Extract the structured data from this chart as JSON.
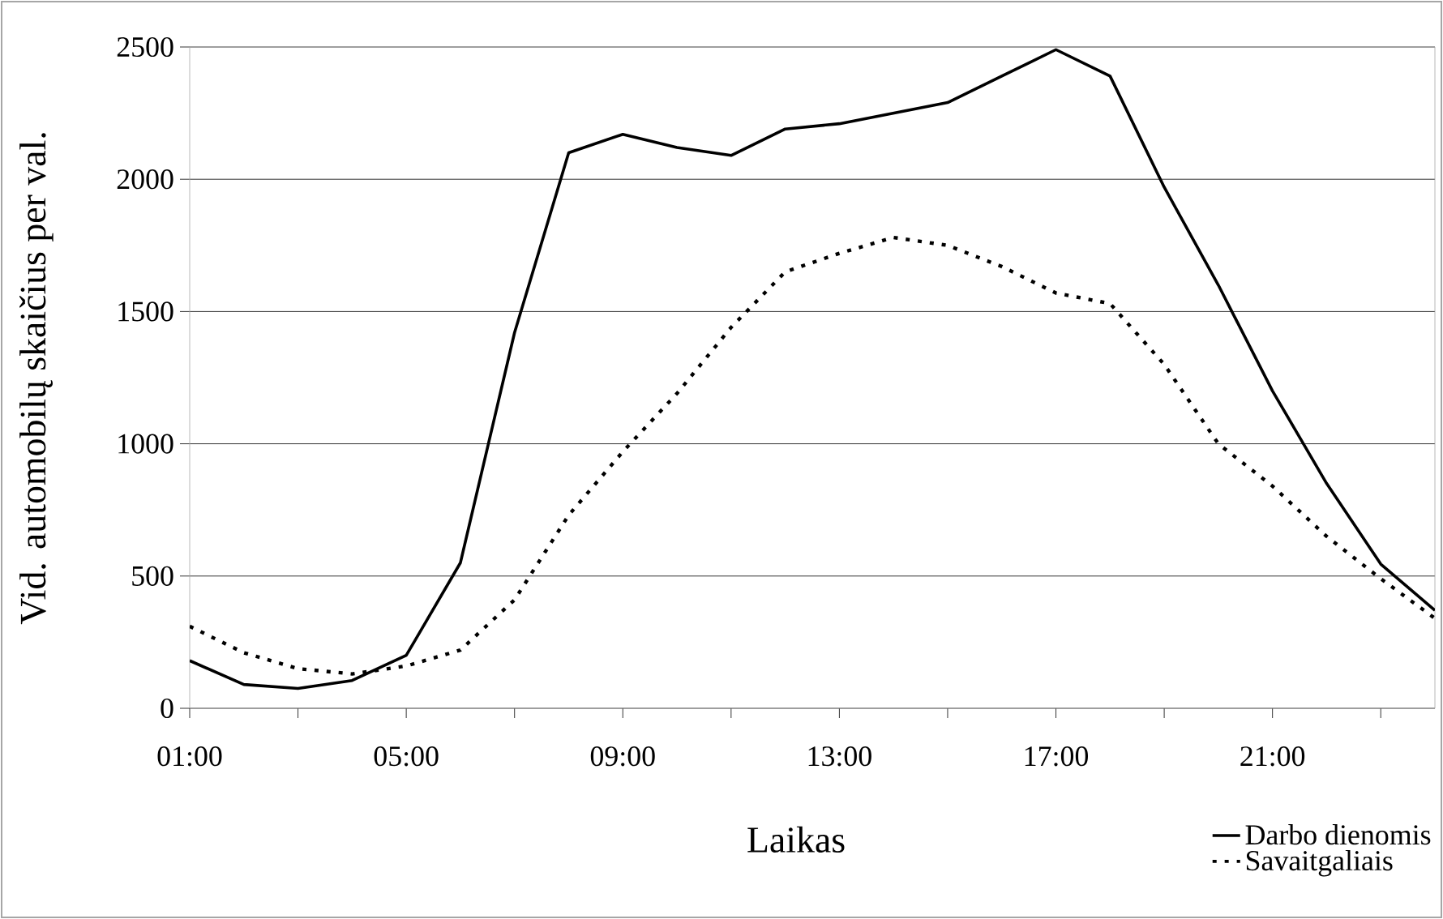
{
  "chart_data": {
    "type": "line",
    "xlabel": "Laikas",
    "ylabel": "Vid. automobilų skaičius per val.",
    "x": [
      1,
      2,
      3,
      4,
      5,
      6,
      7,
      8,
      9,
      10,
      11,
      12,
      13,
      14,
      15,
      16,
      17,
      18,
      19,
      20,
      21,
      22,
      23,
      24
    ],
    "series": [
      {
        "name": "Darbo dienomis",
        "color": "#000000",
        "line_style": "solid",
        "values": [
          180,
          90,
          75,
          105,
          200,
          550,
          1420,
          2100,
          2170,
          2120,
          2090,
          2190,
          2210,
          2250,
          2290,
          2390,
          2490,
          2390,
          1970,
          1600,
          1200,
          850,
          545,
          370
        ]
      },
      {
        "name": "Savaitgaliais",
        "color": "#000000",
        "line_style": "dotted",
        "values": [
          310,
          210,
          150,
          130,
          160,
          220,
          410,
          730,
          970,
          1190,
          1440,
          1650,
          1720,
          1780,
          1750,
          1670,
          1570,
          1530,
          1300,
          1000,
          840,
          650,
          490,
          340
        ]
      }
    ],
    "xlim": [
      1,
      24
    ],
    "xticks": [
      {
        "value": 1,
        "label": "01:00"
      },
      {
        "value": 3,
        "label": null
      },
      {
        "value": 5,
        "label": "05:00"
      },
      {
        "value": 7,
        "label": null
      },
      {
        "value": 9,
        "label": "09:00"
      },
      {
        "value": 11,
        "label": null
      },
      {
        "value": 13,
        "label": "13:00"
      },
      {
        "value": 15,
        "label": null
      },
      {
        "value": 17,
        "label": "17:00"
      },
      {
        "value": 19,
        "label": null
      },
      {
        "value": 21,
        "label": "21:00"
      },
      {
        "value": 23,
        "label": null
      }
    ],
    "ylim": [
      0,
      2500
    ],
    "yticks": [
      0,
      500,
      1000,
      1500,
      2000,
      2500
    ],
    "grid": "y",
    "legend": "bottom right",
    "marker": "none"
  }
}
